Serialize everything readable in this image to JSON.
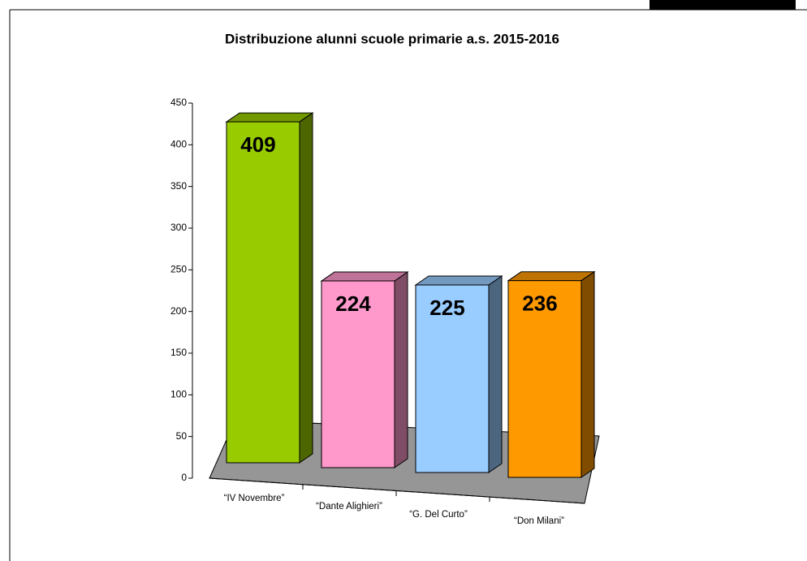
{
  "chart_data": {
    "type": "bar3d",
    "title": "Distribuzione alunni scuole primarie a.s. 2015-2016",
    "categories": [
      "“IV Novembre”",
      "“Dante Alighieri”",
      "“G. Del Curto”",
      "“Don Milani”"
    ],
    "values": [
      409,
      224,
      225,
      236
    ],
    "colors": [
      "#99cc00",
      "#ff99cc",
      "#99ccff",
      "#ff9900"
    ],
    "ylim": [
      0,
      450
    ],
    "yticks": [
      0,
      50,
      100,
      150,
      200,
      250,
      300,
      350,
      400,
      450
    ]
  }
}
